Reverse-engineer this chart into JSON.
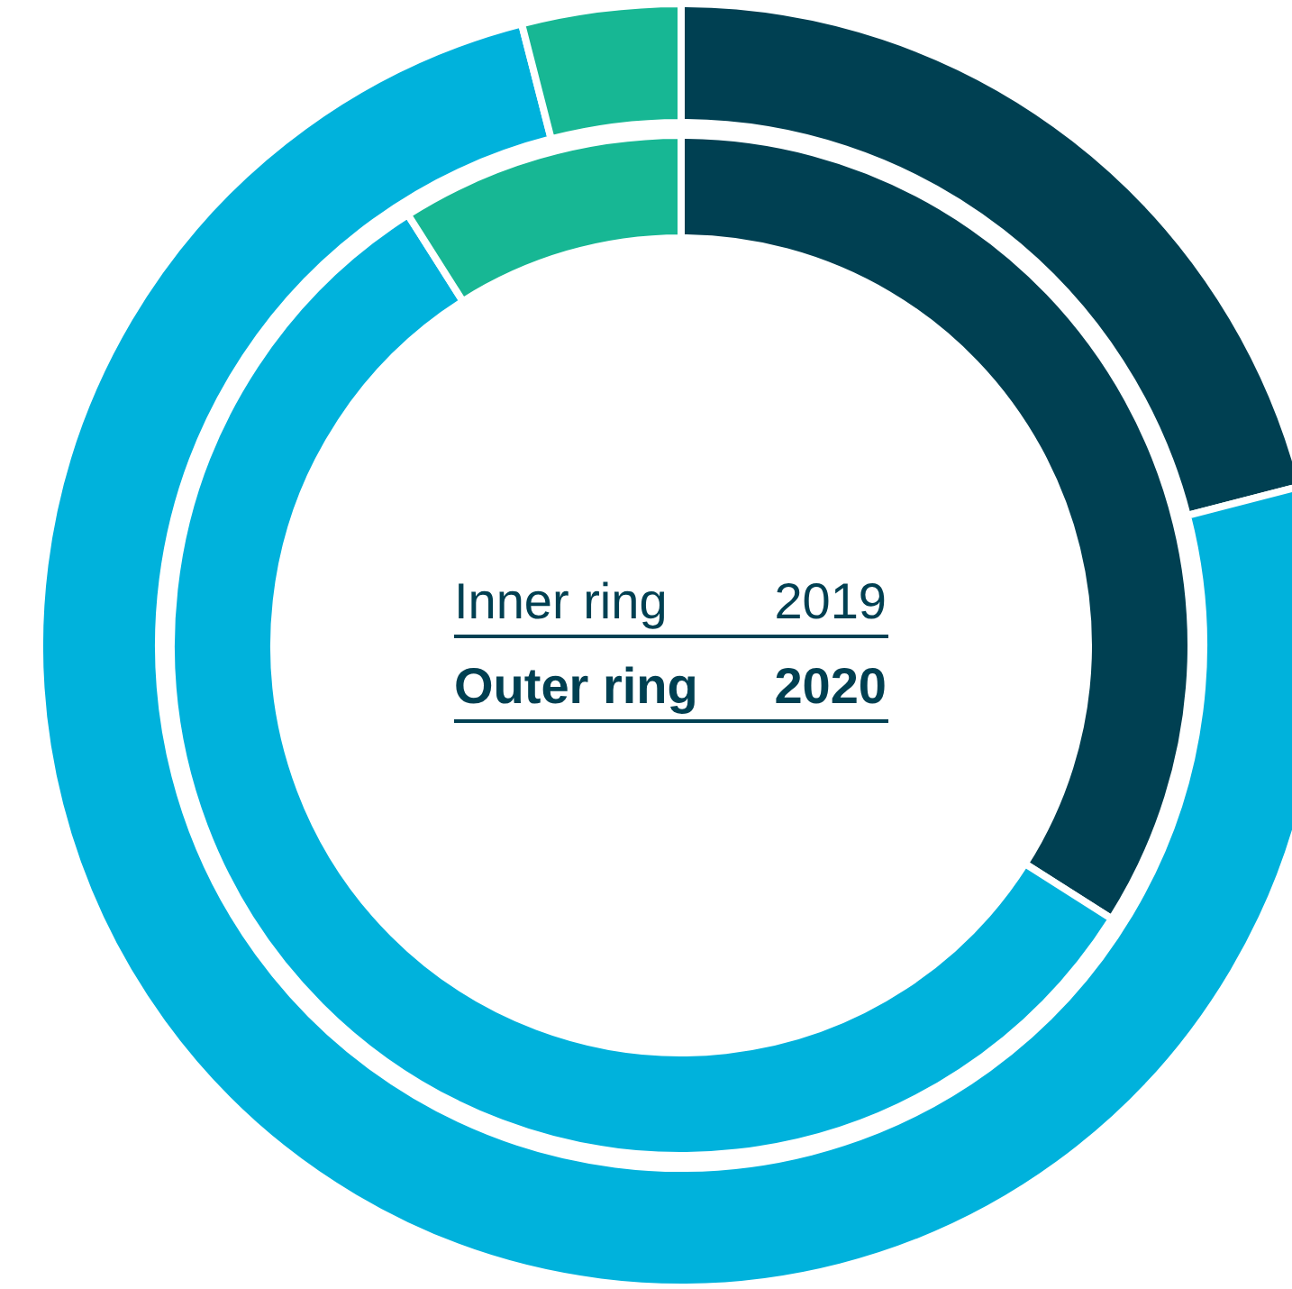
{
  "chart_data": {
    "type": "donut",
    "categories": [
      null,
      null,
      null
    ],
    "colors": [
      "#004052",
      "#00b2dc",
      "#17b794"
    ],
    "series": [
      {
        "values": [
          34,
          57,
          9
        ]
      },
      {
        "values": [
          21,
          75,
          4
        ]
      }
    ],
    "annotations": [
      "Inner ring",
      "2019",
      "Outer ring",
      "2020"
    ]
  }
}
